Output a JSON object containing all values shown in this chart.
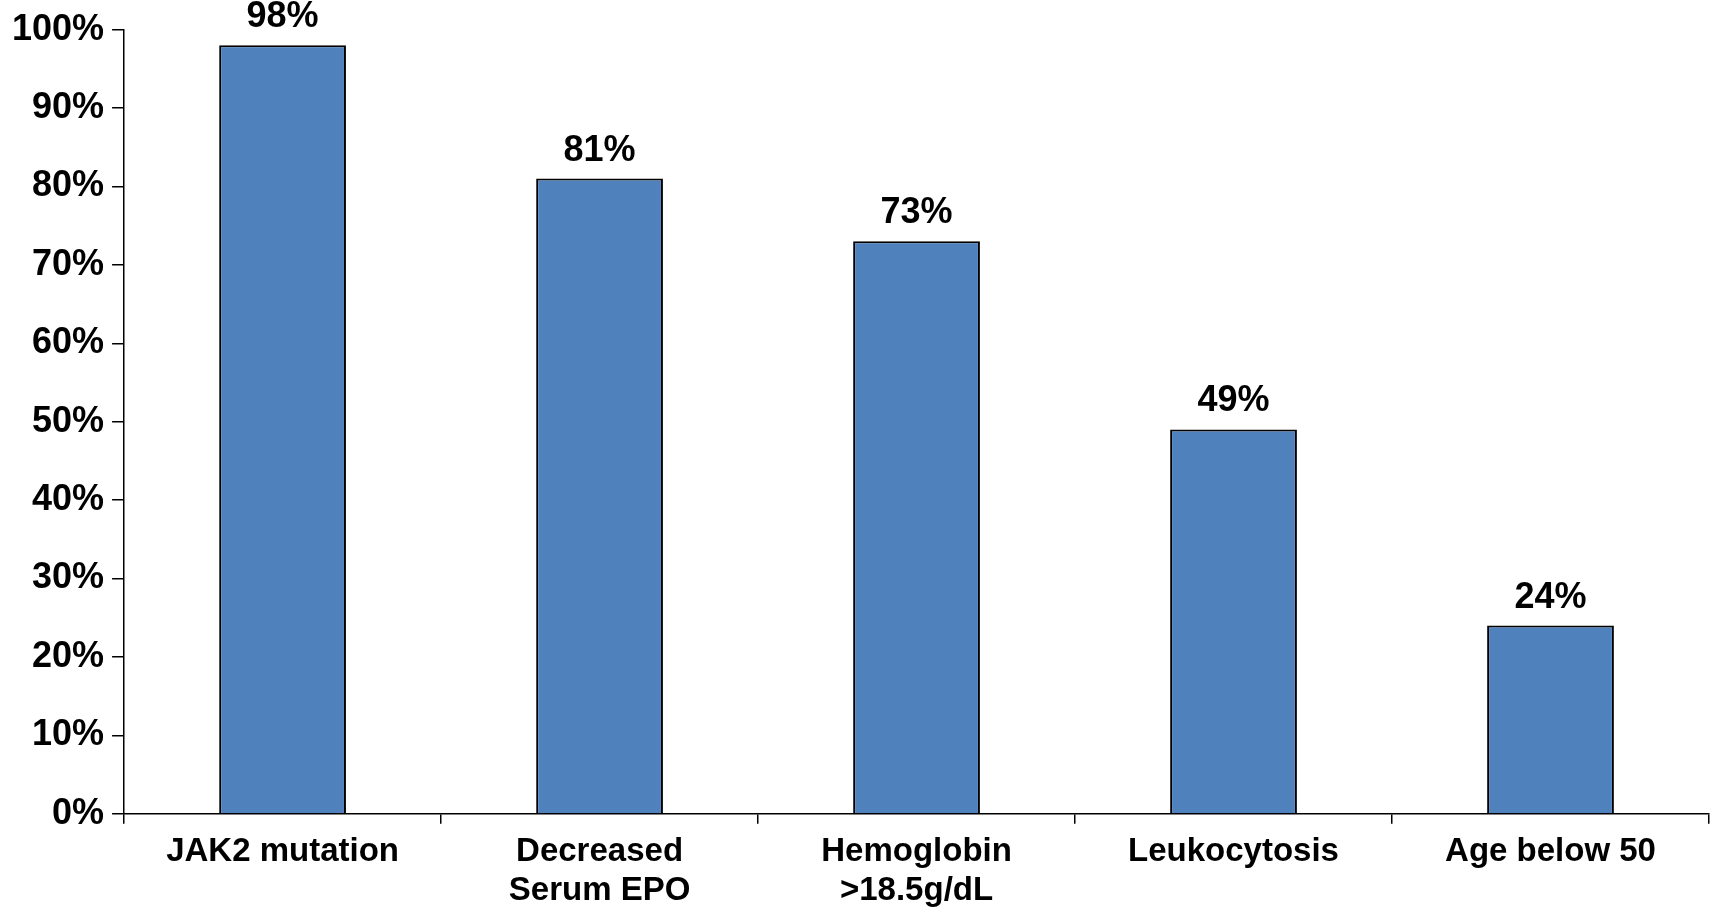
{
  "chart_data": {
    "type": "bar",
    "categories": [
      "JAK2 mutation",
      "Decreased Serum EPO",
      "Hemoglobin >18.5g/dL",
      "Leukocytosis",
      "Age below 50"
    ],
    "values": [
      98,
      81,
      73,
      49,
      24
    ],
    "value_labels": [
      "98%",
      "81%",
      "73%",
      "49%",
      "24%"
    ],
    "color": "#4f81bd",
    "ylim": [
      0,
      100
    ],
    "yticks": [
      {
        "value": 0,
        "label": "0%"
      },
      {
        "value": 10,
        "label": "10%"
      },
      {
        "value": 20,
        "label": "20%"
      },
      {
        "value": 30,
        "label": "30%"
      },
      {
        "value": 40,
        "label": "40%"
      },
      {
        "value": 50,
        "label": "50%"
      },
      {
        "value": 60,
        "label": "60%"
      },
      {
        "value": 70,
        "label": "70%"
      },
      {
        "value": 80,
        "label": "80%"
      },
      {
        "value": 90,
        "label": "90%"
      },
      {
        "value": 100,
        "label": "100%"
      }
    ],
    "grid": false,
    "legend": false
  }
}
